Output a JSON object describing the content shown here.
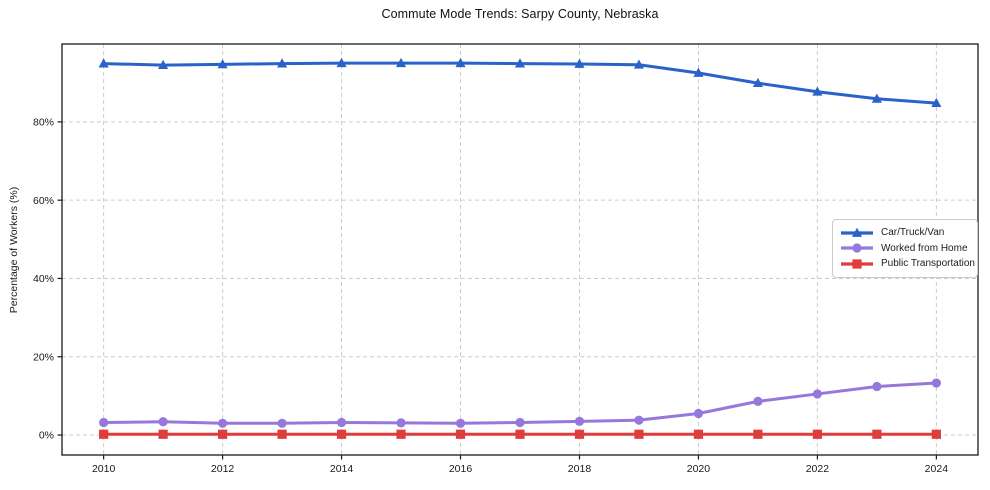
{
  "chart_data": {
    "type": "line",
    "title": "Commute Mode Trends: Sarpy County, Nebraska",
    "xlabel": "",
    "ylabel": "Percentage of Workers (%)",
    "x": [
      2010,
      2011,
      2012,
      2013,
      2014,
      2015,
      2016,
      2017,
      2018,
      2019,
      2020,
      2021,
      2022,
      2023,
      2024
    ],
    "series": [
      {
        "name": "Car/Truck/Van",
        "color": "#2962c9",
        "marker": "triangle",
        "values": [
          94.9,
          94.5,
          94.7,
          94.9,
          95.0,
          95.0,
          95.0,
          94.9,
          94.8,
          94.6,
          92.5,
          89.9,
          87.7,
          85.9,
          84.8
        ]
      },
      {
        "name": "Worked from Home",
        "color": "#9678dc",
        "marker": "circle",
        "values": [
          3.2,
          3.4,
          3.0,
          3.0,
          3.2,
          3.1,
          3.0,
          3.2,
          3.5,
          3.8,
          5.5,
          8.6,
          10.5,
          12.4,
          13.3
        ]
      },
      {
        "name": "Public Transportation",
        "color": "#e03c3c",
        "marker": "square",
        "values": [
          0.2,
          0.2,
          0.2,
          0.2,
          0.2,
          0.2,
          0.2,
          0.2,
          0.2,
          0.2,
          0.2,
          0.2,
          0.2,
          0.2,
          0.2
        ]
      }
    ],
    "xticks": [
      2010,
      2012,
      2014,
      2016,
      2018,
      2020,
      2022,
      2024
    ],
    "yticks": [
      0,
      20,
      40,
      60,
      80
    ],
    "ytick_suffix": "%",
    "xlim": [
      2009.3,
      2024.7
    ],
    "ylim": [
      -5.1,
      99.9
    ],
    "grid": true,
    "grid_color": "#cbcbcb",
    "axis_color": "#1a1a1a",
    "legend_position": "center-right"
  }
}
